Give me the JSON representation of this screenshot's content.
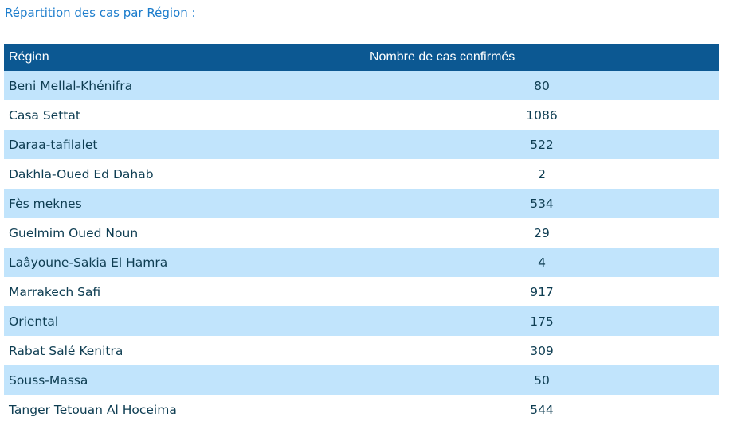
{
  "title": "Répartition des cas par Région :",
  "table": {
    "headers": [
      "Région",
      "Nombre de cas confirmés"
    ],
    "rows": [
      {
        "region": "Beni Mellal-Khénifra",
        "cases": "80"
      },
      {
        "region": "Casa Settat",
        "cases": "1086"
      },
      {
        "region": "Daraa-tafilalet",
        "cases": "522"
      },
      {
        "region": "Dakhla-Oued Ed Dahab",
        "cases": "2"
      },
      {
        "region": "Fès meknes",
        "cases": "534"
      },
      {
        "region": "Guelmim Oued Noun",
        "cases": "29"
      },
      {
        "region": "Laâyoune-Sakia El Hamra",
        "cases": "4"
      },
      {
        "region": "Marrakech Safi",
        "cases": "917"
      },
      {
        "region": "Oriental",
        "cases": "175"
      },
      {
        "region": "Rabat Salé Kenitra",
        "cases": "309"
      },
      {
        "region": "Souss-Massa",
        "cases": "50"
      },
      {
        "region": "Tanger Tetouan Al Hoceima",
        "cases": "544"
      }
    ]
  },
  "colors": {
    "header_bg": "#0c5892",
    "stripe": "#c1e4fc",
    "title": "#1b7ccc",
    "text": "#0e3d52"
  }
}
